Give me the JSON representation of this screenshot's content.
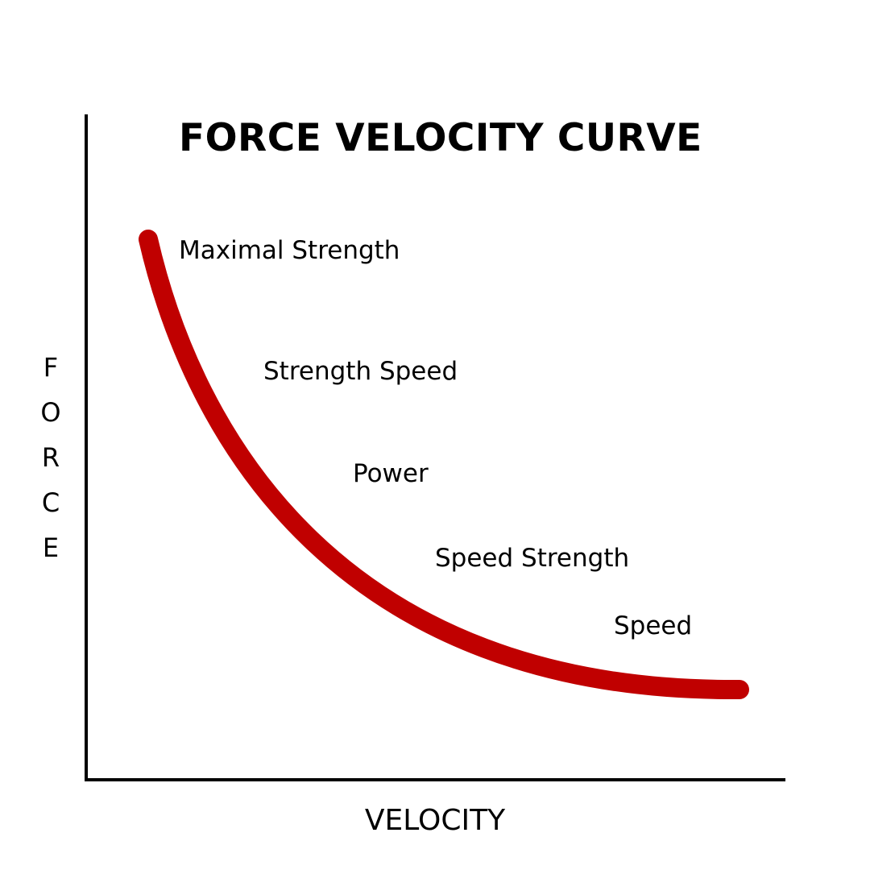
{
  "title": "FORCE VELOCITY CURVE",
  "axes": {
    "y_label": "F\nO\nR\nC\nE",
    "x_label": "VELOCITY"
  },
  "zones": [
    {
      "label": "Maximal Strength"
    },
    {
      "label": "Strength Speed"
    },
    {
      "label": "Power"
    },
    {
      "label": "Speed Strength"
    },
    {
      "label": "Speed"
    }
  ],
  "colors": {
    "curve": "#c00000",
    "axis": "#000000"
  }
}
